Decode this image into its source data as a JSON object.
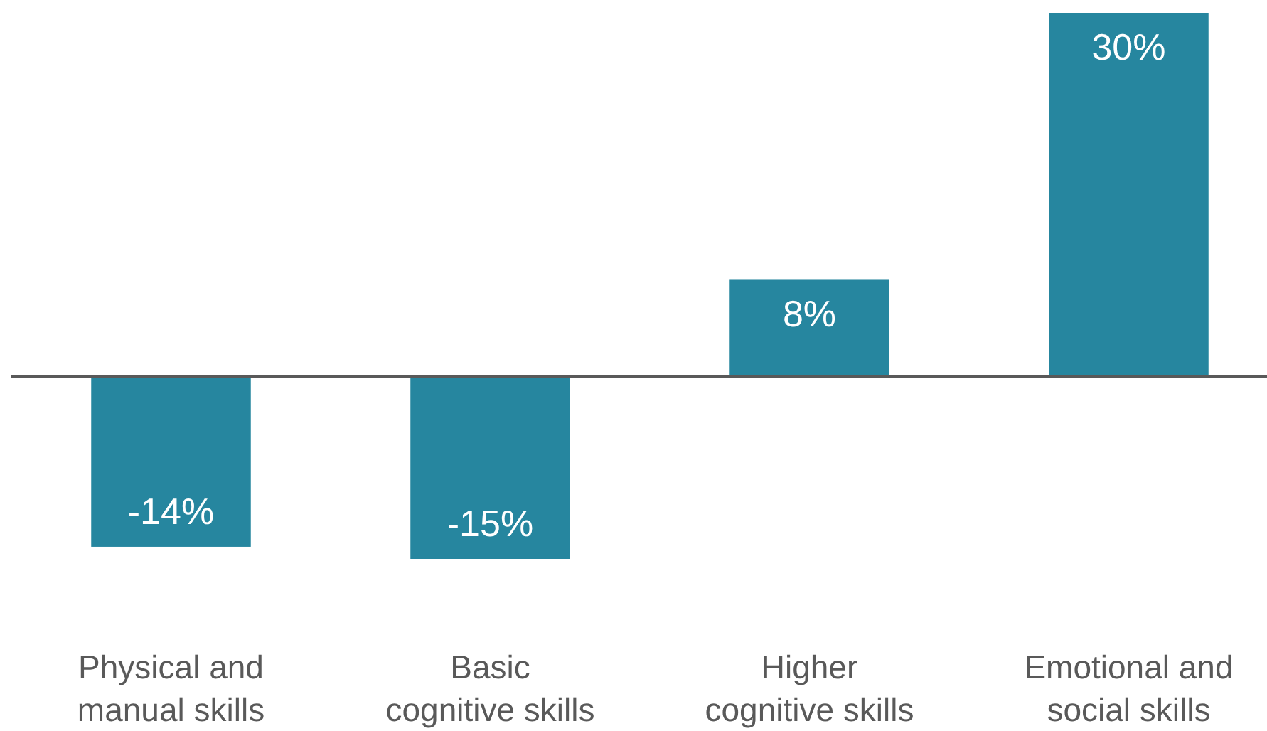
{
  "chart_data": {
    "type": "bar",
    "categories": [
      "Physical and manual skills",
      "Basic cognitive skills",
      "Higher cognitive skills",
      "Emotional and social skills"
    ],
    "values": [
      -14,
      -15,
      8,
      30
    ],
    "color": "#26869f",
    "value_labels": [
      "-14%",
      "-15%",
      "8%",
      "30%"
    ]
  }
}
